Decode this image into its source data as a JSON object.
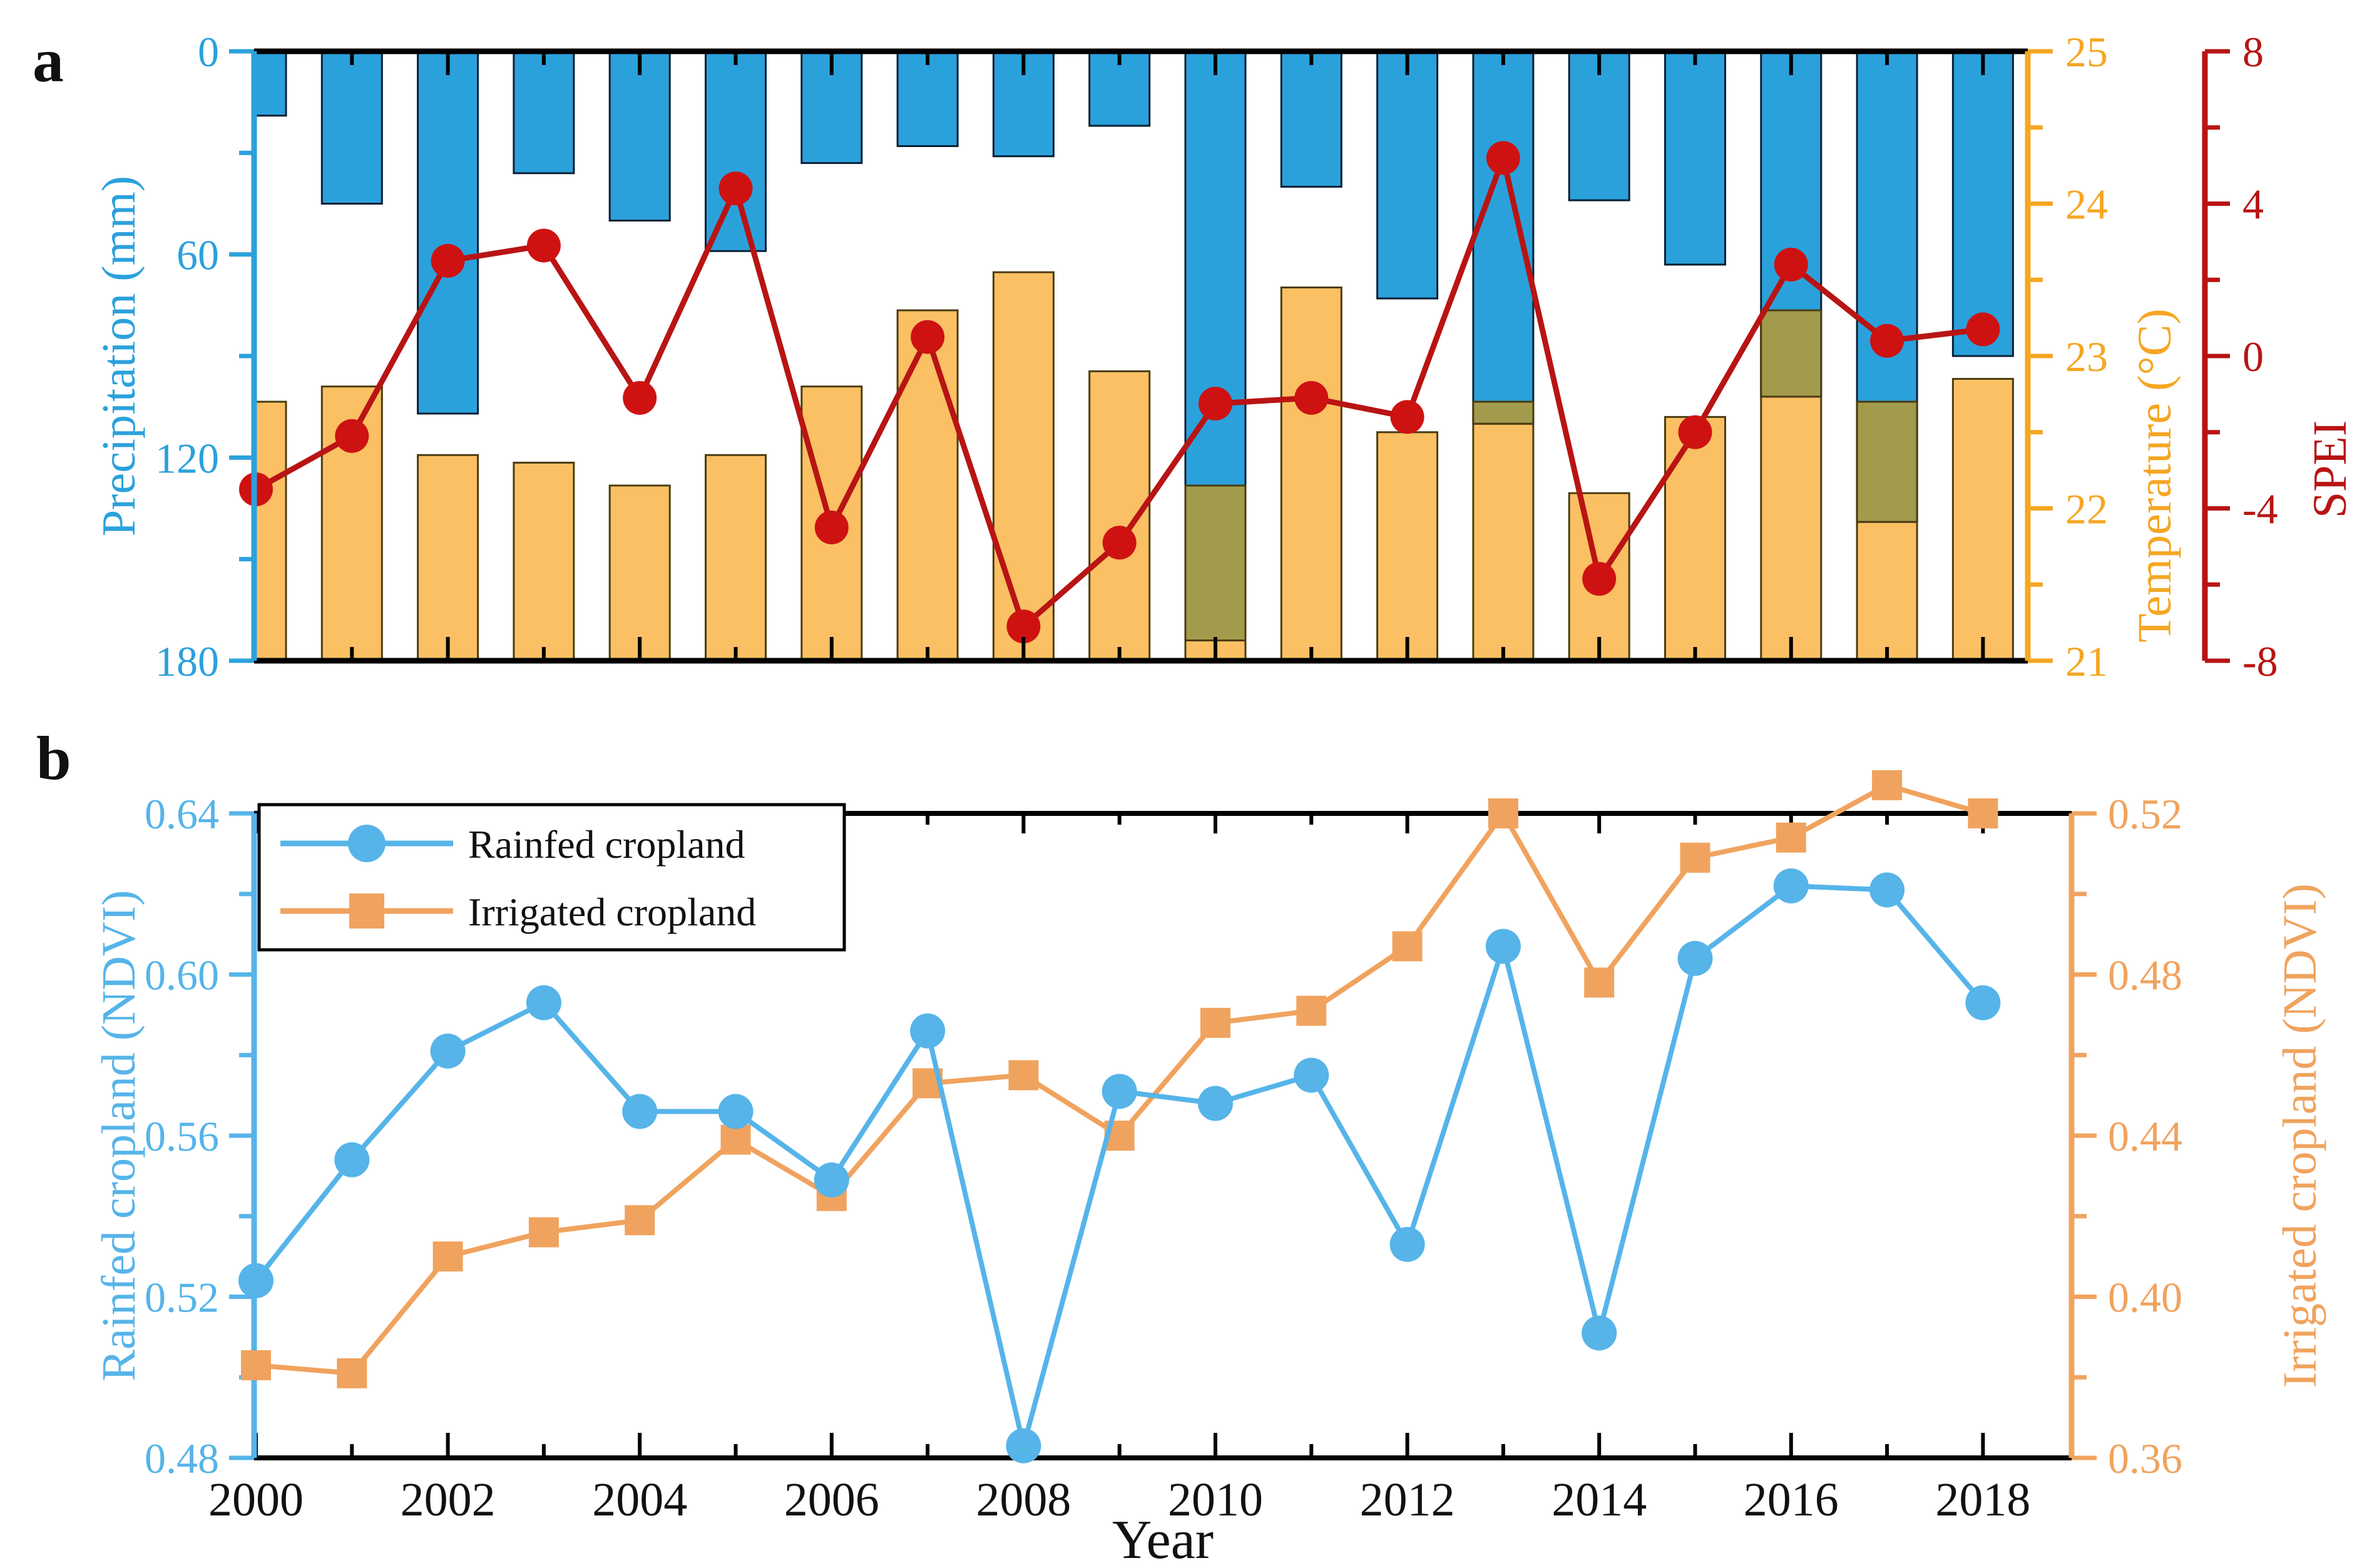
{
  "panel_a_letter": "a",
  "panel_b_letter": "b",
  "xaxis_title": "Year",
  "chart_data": [
    {
      "type": "bar+line",
      "title": "",
      "x": [
        2000,
        2001,
        2002,
        2003,
        2004,
        2005,
        2006,
        2007,
        2008,
        2009,
        2010,
        2011,
        2012,
        2013,
        2014,
        2015,
        2016,
        2017,
        2018
      ],
      "series": [
        {
          "name": "Precipitation",
          "axis": "left-inverted",
          "type": "bar",
          "units": "mm",
          "values": [
            19,
            45,
            107,
            36,
            50,
            59,
            33,
            28,
            31,
            22,
            174,
            40,
            73,
            110,
            44,
            63,
            102,
            139,
            90
          ]
        },
        {
          "name": "Temperature",
          "axis": "right-temp",
          "type": "bar",
          "units": "degC",
          "values": [
            22.7,
            22.8,
            22.35,
            22.3,
            22.15,
            22.35,
            22.8,
            23.3,
            23.55,
            22.9,
            22.15,
            23.45,
            22.5,
            22.7,
            22.1,
            22.6,
            23.3,
            22.7,
            22.85
          ]
        },
        {
          "name": "SPEI",
          "axis": "right-spei",
          "type": "line",
          "units": "",
          "values": [
            -3.5,
            -2.1,
            2.5,
            2.9,
            -1.1,
            4.4,
            -4.5,
            0.5,
            -7.1,
            -4.9,
            -1.25,
            -1.1,
            -1.6,
            5.2,
            -5.85,
            -2.0,
            2.4,
            0.4,
            0.7
          ]
        }
      ],
      "ylabel_left": "Precipitation (mm)",
      "ylabel_right1": "Temperature (°C)",
      "ylabel_right2": "SPEI",
      "yticks_left": [
        0,
        60,
        120,
        180
      ],
      "ylim_left": [
        0,
        180
      ],
      "yticks_right1": [
        25,
        24,
        23,
        22,
        21
      ],
      "ylim_right1": [
        21,
        25
      ],
      "yticks_right2": [
        8,
        4,
        0,
        -4,
        -8
      ],
      "ylim_right2": [
        -8,
        8
      ],
      "grid": false
    },
    {
      "type": "line",
      "title": "",
      "x": [
        2000,
        2001,
        2002,
        2003,
        2004,
        2005,
        2006,
        2007,
        2008,
        2009,
        2010,
        2011,
        2012,
        2013,
        2014,
        2015,
        2016,
        2017,
        2018
      ],
      "series": [
        {
          "name": "Rainfed cropland",
          "axis": "left",
          "marker": "circle",
          "values": [
            0.524,
            0.554,
            0.581,
            0.593,
            0.566,
            0.566,
            0.549,
            0.586,
            0.483,
            0.571,
            0.568,
            0.575,
            0.533,
            0.607,
            0.511,
            0.604,
            0.622,
            0.621,
            0.593
          ]
        },
        {
          "name": "Irrigated cropland",
          "axis": "right",
          "marker": "square",
          "values": [
            0.383,
            0.381,
            0.41,
            0.416,
            0.419,
            0.439,
            0.425,
            0.453,
            0.455,
            0.44,
            0.468,
            0.471,
            0.487,
            0.52,
            0.478,
            0.509,
            0.514,
            0.527,
            0.52
          ]
        }
      ],
      "ylabel_left": "Rainfed cropland (NDVI)",
      "ylabel_right": "Irrigated cropland (NDVI)",
      "yticks_left": [
        0.64,
        0.6,
        0.56,
        0.52,
        0.48
      ],
      "ylim_left": [
        0.48,
        0.64
      ],
      "yticks_right": [
        0.52,
        0.48,
        0.44,
        0.4,
        0.36
      ],
      "ylim_right": [
        0.36,
        0.52
      ],
      "xtick_labels": [
        2000,
        2002,
        2004,
        2006,
        2008,
        2010,
        2012,
        2014,
        2016,
        2018
      ],
      "xlabel": "Year",
      "legend": [
        "Rainfed cropland",
        "Irrigated cropland"
      ],
      "legend_position": "top-left",
      "grid": false
    }
  ],
  "colors": {
    "precip_bar": "#2BA1DC",
    "precip_bar_stroke": "#0a1f33",
    "temp_bar": "#FBC063",
    "temp_bar_stroke": "#4a3c12",
    "overlap_olive": "#A39B4C",
    "spei_red": "#CE1212",
    "spei_line": "#B81414",
    "ndvi_blue": "#56B4E9",
    "ndvi_orange": "#F0A35E",
    "black": "#000000"
  }
}
